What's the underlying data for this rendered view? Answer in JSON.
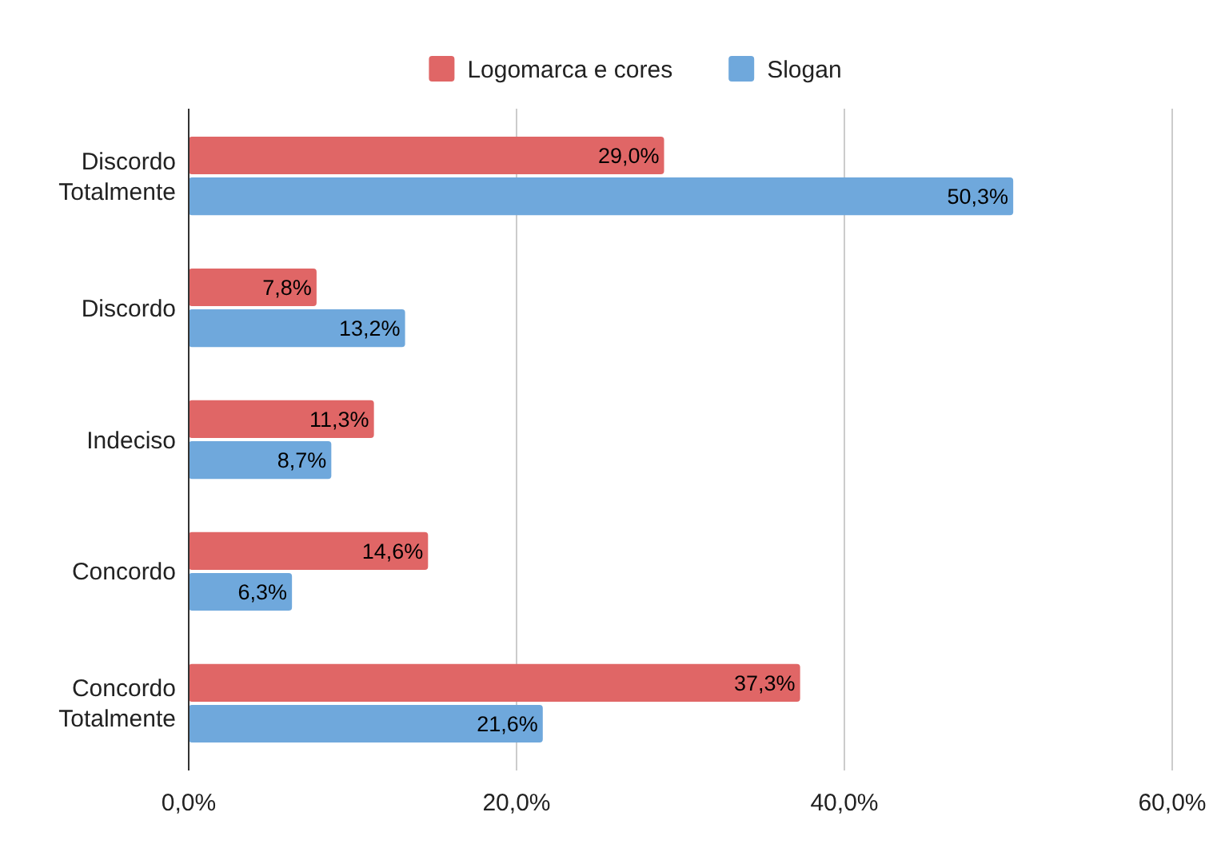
{
  "chart_data": {
    "type": "bar",
    "orientation": "horizontal",
    "categories": [
      "Discordo Totalmente",
      "Discordo",
      "Indeciso",
      "Concordo",
      "Concordo Totalmente"
    ],
    "series": [
      {
        "name": "Logomarca e cores",
        "color": "#e06666",
        "values": [
          29.0,
          7.8,
          11.3,
          14.6,
          37.3
        ],
        "value_labels": [
          "29,0%",
          "7,8%",
          "11,3%",
          "14,6%",
          "37,3%"
        ]
      },
      {
        "name": "Slogan",
        "color": "#6fa8dc",
        "values": [
          50.3,
          13.2,
          8.7,
          6.3,
          21.6
        ],
        "value_labels": [
          "50,3%",
          "13,2%",
          "8,7%",
          "6,3%",
          "21,6%"
        ]
      }
    ],
    "xlim": [
      0,
      60
    ],
    "xticks": [
      {
        "value": 0,
        "label": "0,0%"
      },
      {
        "value": 20,
        "label": "20,0%"
      },
      {
        "value": 40,
        "label": "40,0%"
      },
      {
        "value": 60,
        "label": "60,0%"
      }
    ],
    "grid": "x",
    "legend": "top"
  }
}
